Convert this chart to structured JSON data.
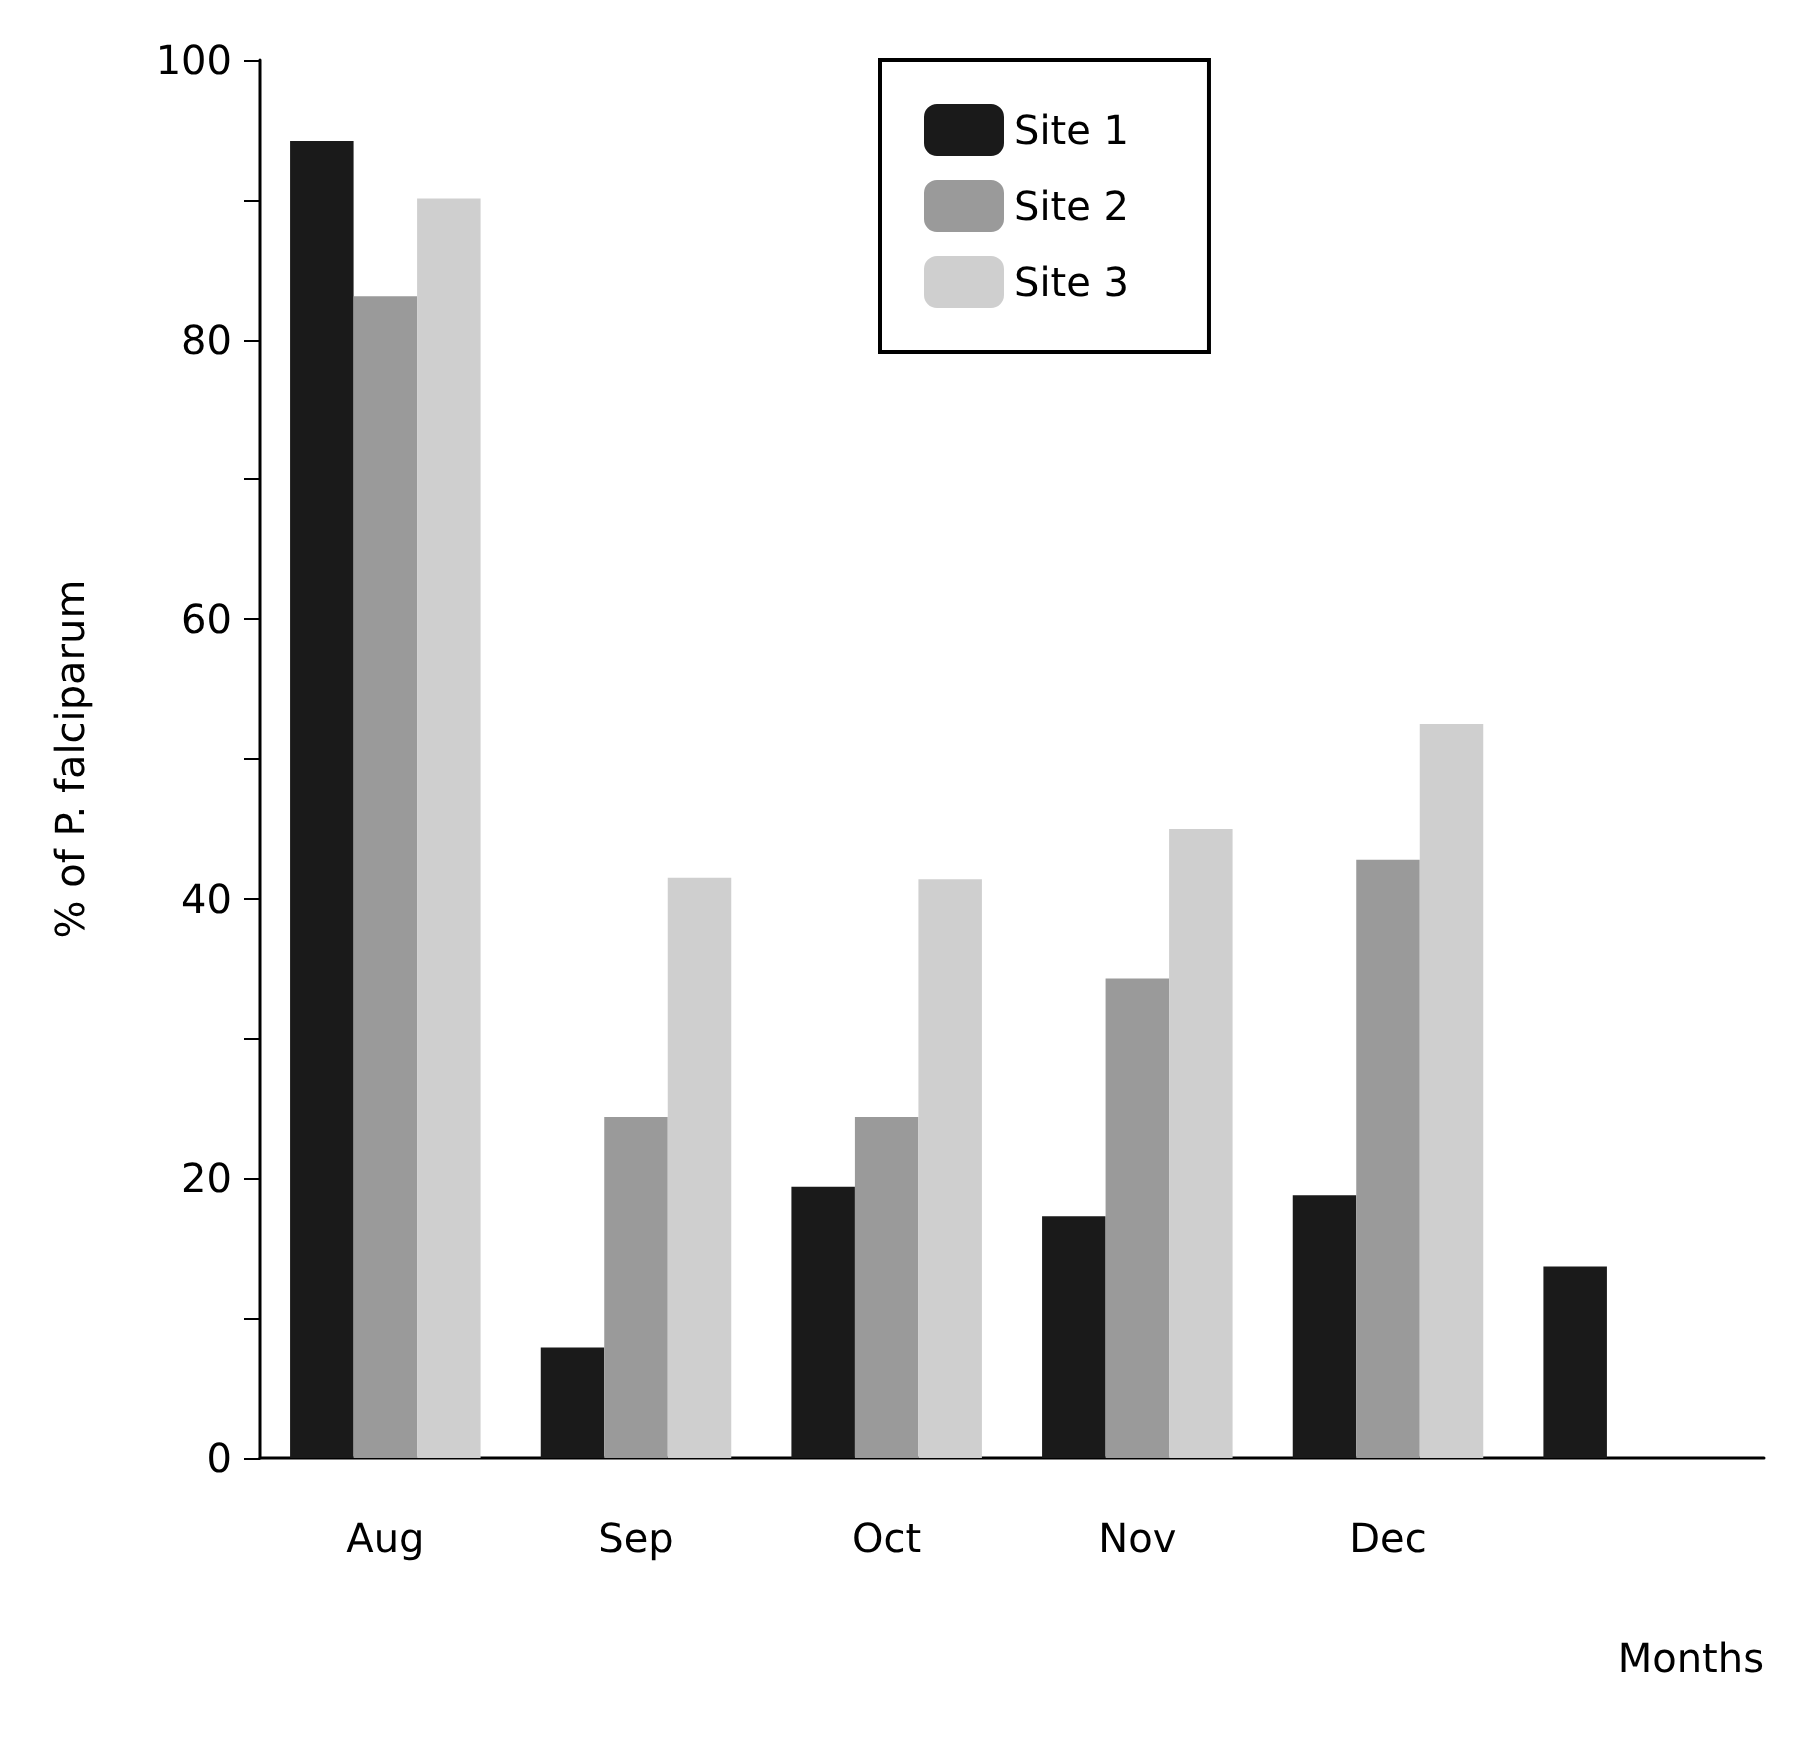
{
  "chart_data": {
    "type": "bar",
    "ylabel": "% of P. falciparum",
    "xlabel": "Months",
    "categories": [
      "Aug",
      "Sep",
      "Oct",
      "Nov",
      "Dec",
      null
    ],
    "series": [
      {
        "name": "Site 1",
        "color": "#1a1a1a",
        "values": [
          94.2,
          7.9,
          19.4,
          17.3,
          18.8,
          13.7
        ]
      },
      {
        "name": "Site 2",
        "color": "#9a9a9a",
        "values": [
          83.1,
          24.4,
          24.4,
          34.3,
          42.8,
          null
        ]
      },
      {
        "name": "Site 3",
        "color": "#cfcfcf",
        "values": [
          90.1,
          41.5,
          41.4,
          45.0,
          52.5,
          null
        ]
      }
    ],
    "ylim": [
      0,
      100
    ],
    "yticks": [
      0,
      {
        "value": 10,
        "label": null
      },
      20,
      {
        "value": 30,
        "label": null
      },
      40,
      {
        "value": 50,
        "label": null
      },
      60,
      {
        "value": 70,
        "label": null
      },
      80,
      {
        "value": 90,
        "label": null
      },
      100
    ],
    "grid": false,
    "legend": "top"
  }
}
